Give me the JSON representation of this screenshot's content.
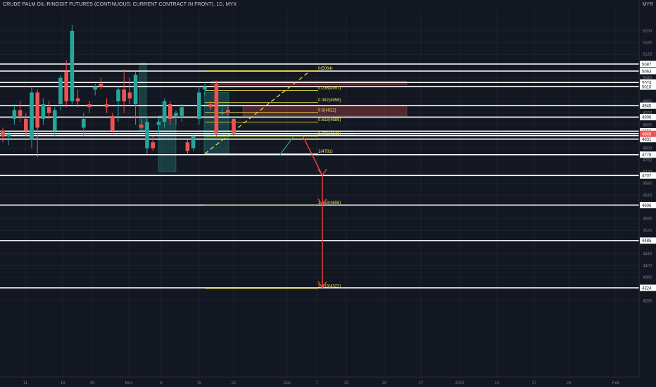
{
  "header": {
    "title": "CRUDE PALM OIL-RINGGIT FUTURES (CONTINUOUS: CURRENT CONTRACT IN FRONT), 1D, MYX",
    "currency": "MYR"
  },
  "colors": {
    "background": "#131722",
    "bull": "#26a69a",
    "bear": "#ef5350",
    "fib": "#f0e442",
    "hline": "#ffffff",
    "zone_red": "#ef5350",
    "zone_green": "#26a69a",
    "arrow": "#f44336",
    "last_price_bg": "#ef5350"
  },
  "chart_data": {
    "type": "candlestick",
    "symbol": "CRUDE PALM OIL-RINGGIT FUTURES (CONTINUOUS: CURRENT CONTRACT IN FRONT)",
    "interval": "1D",
    "exchange": "MYX",
    "currency": "MYR",
    "ylim": [
      4240,
      5260
    ],
    "y_ticks": [
      5200,
      5160,
      5120,
      5040,
      4960,
      4920,
      4880,
      4850,
      4800,
      4760,
      4720,
      4680,
      4640,
      4560,
      4520,
      4440,
      4400,
      4360,
      4280
    ],
    "x_tick_labels": [
      "11",
      "18",
      "25",
      "Nov",
      "8",
      "15",
      "22",
      "Dec",
      "7",
      "13",
      "20",
      "27",
      "2022",
      "10",
      "17",
      "24",
      "Feb"
    ],
    "candles": [
      {
        "o": 4860,
        "h": 4870,
        "l": 4820,
        "c": 4840
      },
      {
        "o": 4840,
        "h": 4855,
        "l": 4810,
        "c": 4850
      },
      {
        "o": 4900,
        "h": 4950,
        "l": 4880,
        "c": 4930
      },
      {
        "o": 4930,
        "h": 4960,
        "l": 4890,
        "c": 4910
      },
      {
        "o": 4900,
        "h": 4920,
        "l": 4840,
        "c": 4860
      },
      {
        "o": 4830,
        "h": 5010,
        "l": 4800,
        "c": 4990
      },
      {
        "o": 4990,
        "h": 5000,
        "l": 4770,
        "c": 4870
      },
      {
        "o": 4900,
        "h": 4970,
        "l": 4880,
        "c": 4950
      },
      {
        "o": 4940,
        "h": 4960,
        "l": 4900,
        "c": 4920
      },
      {
        "o": 4860,
        "h": 4940,
        "l": 4840,
        "c": 4930
      },
      {
        "o": 4950,
        "h": 5050,
        "l": 4930,
        "c": 5040
      },
      {
        "o": 5060,
        "h": 5100,
        "l": 4940,
        "c": 4960
      },
      {
        "o": 4960,
        "h": 5220,
        "l": 4950,
        "c": 5200
      },
      {
        "o": 4970,
        "h": 5000,
        "l": 4940,
        "c": 4960
      },
      {
        "o": 4870,
        "h": 4920,
        "l": 4840,
        "c": 4900
      },
      {
        "o": 4950,
        "h": 4960,
        "l": 4920,
        "c": 4940
      },
      {
        "o": 5000,
        "h": 5020,
        "l": 4980,
        "c": 5010
      },
      {
        "o": 5020,
        "h": 5040,
        "l": 5000,
        "c": 5010
      },
      {
        "o": 4950,
        "h": 4970,
        "l": 4920,
        "c": 4940
      },
      {
        "o": 4910,
        "h": 4920,
        "l": 4850,
        "c": 4860
      },
      {
        "o": 4960,
        "h": 5010,
        "l": 4890,
        "c": 5000
      },
      {
        "o": 5000,
        "h": 5070,
        "l": 4920,
        "c": 4960
      },
      {
        "o": 4990,
        "h": 5040,
        "l": 4950,
        "c": 4970
      },
      {
        "o": 4950,
        "h": 5060,
        "l": 4880,
        "c": 5050
      },
      {
        "o": 4880,
        "h": 4900,
        "l": 4850,
        "c": 4870
      },
      {
        "o": 4800,
        "h": 4910,
        "l": 4780,
        "c": 4890
      },
      {
        "o": 4820,
        "h": 4840,
        "l": 4790,
        "c": 4800
      },
      {
        "o": 4880,
        "h": 4900,
        "l": 4850,
        "c": 4890
      },
      {
        "o": 4890,
        "h": 4970,
        "l": 4870,
        "c": 4960
      },
      {
        "o": 4950,
        "h": 4960,
        "l": 4880,
        "c": 4900
      },
      {
        "o": 4910,
        "h": 4930,
        "l": 4880,
        "c": 4920
      },
      {
        "o": 4910,
        "h": 4950,
        "l": 4890,
        "c": 4940
      },
      {
        "o": 4820,
        "h": 4830,
        "l": 4780,
        "c": 4790
      },
      {
        "o": 4800,
        "h": 4850,
        "l": 4790,
        "c": 4840
      },
      {
        "o": 4900,
        "h": 5010,
        "l": 4880,
        "c": 4990
      },
      {
        "o": 5000,
        "h": 5020,
        "l": 4980,
        "c": 5010
      },
      {
        "o": 4950,
        "h": 4960,
        "l": 4930,
        "c": 4940
      },
      {
        "o": 5020,
        "h": 5030,
        "l": 4840,
        "c": 4850
      },
      {
        "o": 4920,
        "h": 4950,
        "l": 4910,
        "c": 4920
      },
      {
        "o": 4930,
        "h": 4950,
        "l": 4910,
        "c": 4920
      },
      {
        "o": 4900,
        "h": 4910,
        "l": 4840,
        "c": 4850
      }
    ],
    "horizontal_levels": [
      5087,
      5063,
      5024,
      5010,
      4945,
      4906,
      4858,
      4850,
      4843,
      4831,
      4778,
      4707,
      4606,
      4485,
      4324
    ],
    "price_axis_labels": [
      "5087",
      "5063",
      "5024",
      "5010",
      "4945",
      "4906",
      "4858",
      "4850",
      "4843",
      "4831",
      "4778",
      "4707",
      "4606",
      "4485",
      "4324"
    ],
    "last_price": {
      "value": 4849,
      "label": "4849"
    },
    "fib_levels": [
      {
        "label": "0(5064)",
        "price": 5064
      },
      {
        "label": "0.236(4997)",
        "price": 4997
      },
      {
        "label": "0.382(4956)",
        "price": 4956
      },
      {
        "label": "0.5(4922)",
        "price": 4922
      },
      {
        "label": "0.618(4889)",
        "price": 4889
      },
      {
        "label": "0.786(4841)",
        "price": 4841
      },
      {
        "label": "1(4781)",
        "price": 4781
      },
      {
        "label": "1.618(4606)",
        "price": 4606
      },
      {
        "label": "2.618(4322)",
        "price": 4322
      }
    ],
    "zones": [
      {
        "kind": "red",
        "from_date": "Nov 18",
        "to_date": "Dec 27",
        "top": 5029,
        "bottom": 5016
      },
      {
        "kind": "red",
        "from_date": "Nov 24",
        "to_date": "Dec 27",
        "top": 4945,
        "bottom": 4910
      },
      {
        "kind": "green",
        "from_date": "Nov 16",
        "to_date": "Dec 13",
        "top": 4850,
        "bottom": 4843
      },
      {
        "kind": "green",
        "from_date": "Nov 1",
        "to_date": "Nov 4",
        "top": 5090,
        "bottom": 4860
      },
      {
        "kind": "green",
        "from_date": "Nov 10",
        "to_date": "Nov 13",
        "top": 4910,
        "bottom": 4720
      },
      {
        "kind": "green",
        "from_date": "Nov 16",
        "to_date": "Nov 19",
        "top": 4990,
        "bottom": 4780
      }
    ]
  }
}
